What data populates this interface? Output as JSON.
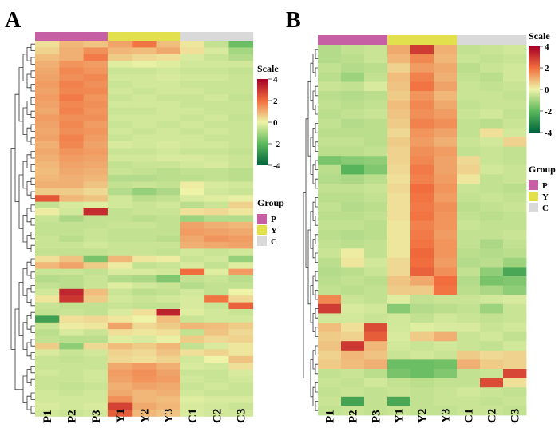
{
  "chart_data": [
    {
      "type": "heatmap",
      "panel_label": "A",
      "columns": [
        "P1",
        "P2",
        "P3",
        "Y1",
        "Y2",
        "Y3",
        "C1",
        "C2",
        "C3"
      ],
      "column_groups": [
        "P",
        "P",
        "P",
        "Y",
        "Y",
        "Y",
        "C",
        "C",
        "C"
      ],
      "row_count": 56,
      "values": [
        [
          0.3,
          0.9,
          0.7,
          1.2,
          1.9,
          0.8,
          0.2,
          -0.6,
          -1.8
        ],
        [
          0.5,
          1.0,
          1.5,
          0.9,
          0.8,
          1.1,
          0.3,
          -0.3,
          -1.0
        ],
        [
          0.8,
          1.0,
          1.8,
          0.6,
          0.4,
          0.3,
          -0.3,
          -0.5,
          -0.8
        ],
        [
          1.0,
          1.4,
          1.3,
          -0.2,
          -0.1,
          -0.2,
          -0.4,
          -0.4,
          -0.4
        ],
        [
          1.1,
          1.6,
          1.4,
          -0.5,
          -0.5,
          -0.4,
          -0.5,
          -0.5,
          -0.6
        ],
        [
          1.2,
          1.5,
          1.6,
          -0.4,
          -0.4,
          -0.3,
          -0.4,
          -0.4,
          -0.5
        ],
        [
          1.3,
          1.7,
          1.5,
          -0.5,
          -0.4,
          -0.4,
          -0.5,
          -0.5,
          -0.5
        ],
        [
          1.2,
          1.6,
          1.6,
          -0.4,
          -0.5,
          -0.4,
          -0.4,
          -0.5,
          -0.5
        ],
        [
          1.3,
          1.8,
          1.4,
          -0.5,
          -0.4,
          -0.5,
          -0.5,
          -0.4,
          -0.6
        ],
        [
          1.2,
          1.6,
          1.5,
          -0.4,
          -0.4,
          -0.4,
          -0.5,
          -0.5,
          -0.5
        ],
        [
          1.1,
          1.7,
          1.4,
          -0.5,
          -0.5,
          -0.4,
          -0.4,
          -0.5,
          -0.5
        ],
        [
          1.3,
          1.5,
          1.5,
          -0.4,
          -0.4,
          -0.4,
          -0.5,
          -0.4,
          -0.6
        ],
        [
          1.2,
          1.6,
          1.3,
          -0.5,
          -0.4,
          -0.5,
          -0.4,
          -0.5,
          -0.5
        ],
        [
          1.1,
          1.5,
          1.4,
          -0.4,
          -0.5,
          -0.4,
          -0.5,
          -0.4,
          -0.5
        ],
        [
          1.2,
          1.7,
          1.3,
          -0.5,
          -0.4,
          -0.4,
          -0.4,
          -0.5,
          -0.5
        ],
        [
          1.0,
          1.6,
          1.2,
          -0.3,
          -0.4,
          -0.3,
          -0.4,
          -0.4,
          -0.5
        ],
        [
          1.1,
          1.4,
          1.3,
          -0.5,
          -0.5,
          -0.4,
          -0.5,
          -0.5,
          -0.6
        ],
        [
          1.0,
          1.3,
          1.2,
          -0.4,
          -0.4,
          -0.3,
          -0.3,
          -0.4,
          -0.5
        ],
        [
          0.9,
          1.2,
          1.1,
          -0.6,
          -0.5,
          -0.5,
          -0.4,
          -0.3,
          -0.5
        ],
        [
          0.8,
          1.1,
          1.0,
          -0.5,
          -0.6,
          -0.7,
          -0.6,
          -0.6,
          -0.7
        ],
        [
          0.9,
          1.0,
          0.9,
          -0.8,
          -0.8,
          -0.7,
          -0.7,
          -0.6,
          -0.7
        ],
        [
          1.0,
          1.0,
          0.7,
          -0.6,
          -0.5,
          -0.6,
          0.1,
          -0.3,
          -0.4
        ],
        [
          0.6,
          0.6,
          0.4,
          -0.8,
          -1.2,
          -0.9,
          0.0,
          -0.4,
          -0.5
        ],
        [
          2.4,
          0.9,
          0.7,
          -0.4,
          -0.7,
          -0.6,
          -0.3,
          -0.2,
          -0.1
        ],
        [
          -0.6,
          -0.3,
          -0.2,
          -0.4,
          -0.5,
          -0.4,
          -0.7,
          -0.5,
          0.5
        ],
        [
          0.1,
          -0.4,
          3.2,
          -0.6,
          -0.5,
          -0.5,
          0.3,
          0.4,
          0.2
        ],
        [
          -0.5,
          -0.9,
          -0.6,
          -0.6,
          -0.7,
          -0.6,
          -1.1,
          -0.8,
          -0.8
        ],
        [
          -0.6,
          -0.6,
          -0.6,
          -0.5,
          -0.5,
          -0.6,
          1.2,
          1.0,
          0.9
        ],
        [
          -0.6,
          -0.6,
          -0.5,
          -0.6,
          -0.6,
          -0.6,
          1.3,
          1.2,
          1.1
        ],
        [
          -0.5,
          -0.7,
          -0.5,
          -0.6,
          -0.6,
          -0.7,
          1.1,
          1.4,
          1.3
        ],
        [
          -0.5,
          -0.5,
          -0.4,
          -0.5,
          -0.5,
          -0.5,
          1.0,
          1.1,
          1.2
        ],
        [
          -0.6,
          -0.6,
          -0.6,
          -0.5,
          -0.5,
          -0.6,
          -0.4,
          -0.5,
          -0.4
        ],
        [
          0.3,
          0.7,
          -1.6,
          0.9,
          0.2,
          0.1,
          -0.5,
          -0.4,
          -1.2
        ],
        [
          0.9,
          1.2,
          0.6,
          0.1,
          -0.6,
          -0.5,
          -0.3,
          -0.6,
          -0.2
        ],
        [
          -0.5,
          -0.5,
          -0.6,
          -0.3,
          -0.3,
          -0.4,
          2.0,
          -0.2,
          1.3
        ],
        [
          -0.8,
          -0.7,
          -0.5,
          -0.8,
          -0.9,
          -1.5,
          -0.6,
          -0.5,
          -0.7
        ],
        [
          -0.6,
          -0.7,
          -0.5,
          -0.2,
          -0.4,
          -0.5,
          -0.8,
          -0.6,
          -0.6
        ],
        [
          -0.4,
          3.3,
          0.8,
          -0.5,
          -0.7,
          -0.6,
          -0.4,
          -0.6,
          0.0
        ],
        [
          0.2,
          3.0,
          0.6,
          -0.4,
          -0.5,
          -0.4,
          -0.3,
          1.9,
          0.4
        ],
        [
          -0.5,
          -0.6,
          -0.6,
          -0.5,
          -0.6,
          -0.6,
          -0.3,
          -0.5,
          2.2
        ],
        [
          -0.6,
          -0.5,
          -0.6,
          -0.3,
          0.3,
          3.4,
          -0.2,
          -0.4,
          -0.5
        ],
        [
          -2.6,
          0.3,
          0.4,
          0.2,
          0.0,
          0.8,
          -0.5,
          -0.4,
          -0.4
        ],
        [
          -0.5,
          0.1,
          0.2,
          1.2,
          0.4,
          0.6,
          0.9,
          0.8,
          0.6
        ],
        [
          -0.7,
          -0.3,
          -0.5,
          0.3,
          0.2,
          0.3,
          -0.6,
          0.7,
          0.4
        ],
        [
          -0.6,
          -0.7,
          -0.7,
          -0.2,
          -0.3,
          -0.1,
          0.6,
          0.4,
          0.5
        ],
        [
          0.6,
          -1.3,
          0.4,
          0.8,
          0.6,
          0.9,
          -0.6,
          -0.3,
          0.2
        ],
        [
          -0.3,
          -0.5,
          -0.4,
          0.5,
          0.4,
          0.7,
          0.3,
          0.5,
          0.2
        ],
        [
          -0.5,
          -0.6,
          -0.5,
          0.4,
          0.3,
          0.5,
          -0.4,
          0.0,
          0.7
        ],
        [
          -0.5,
          -0.5,
          -0.5,
          1.1,
          1.3,
          1.0,
          -0.3,
          -0.4,
          0.3
        ],
        [
          -0.4,
          -0.5,
          -0.4,
          1.3,
          1.5,
          1.2,
          -0.5,
          -0.5,
          -0.3
        ],
        [
          -0.5,
          -0.5,
          -0.4,
          1.2,
          1.4,
          1.3,
          -0.4,
          -0.5,
          -0.4
        ],
        [
          -0.5,
          -0.6,
          -0.5,
          1.0,
          1.2,
          1.1,
          -0.5,
          -0.4,
          -0.5
        ],
        [
          -0.4,
          -0.5,
          -0.4,
          1.1,
          0.9,
          1.0,
          -0.4,
          -0.5,
          -0.5
        ],
        [
          -0.4,
          -0.4,
          -0.4,
          1.5,
          0.9,
          0.8,
          -0.2,
          -0.3,
          -0.3
        ],
        [
          -0.3,
          -0.4,
          -0.3,
          2.8,
          1.1,
          0.9,
          -0.3,
          -0.4,
          -0.5
        ],
        [
          -0.4,
          -0.5,
          -0.4,
          2.3,
          0.9,
          0.7,
          -0.3,
          -0.4,
          -0.4
        ]
      ]
    },
    {
      "type": "heatmap",
      "panel_label": "B",
      "columns": [
        "P1",
        "P2",
        "P3",
        "Y1",
        "Y2",
        "Y3",
        "C1",
        "C2",
        "C3"
      ],
      "column_groups": [
        "P",
        "P",
        "P",
        "Y",
        "Y",
        "Y",
        "C",
        "C",
        "C"
      ],
      "row_count": 40,
      "values": [
        [
          -0.8,
          -0.6,
          -0.5,
          1.1,
          2.9,
          1.0,
          -0.6,
          -0.5,
          -0.4
        ],
        [
          -0.8,
          -0.7,
          -0.5,
          0.9,
          1.6,
          0.9,
          -0.5,
          -0.6,
          -0.5
        ],
        [
          -0.6,
          -0.8,
          -0.7,
          0.5,
          1.3,
          1.1,
          -0.7,
          -0.5,
          -0.4
        ],
        [
          -0.7,
          -1.1,
          -0.6,
          0.8,
          1.7,
          1.0,
          -0.6,
          -0.7,
          -0.4
        ],
        [
          -0.5,
          -0.6,
          -0.3,
          0.7,
          1.9,
          1.2,
          -0.5,
          -0.6,
          -0.5
        ],
        [
          -0.7,
          -0.8,
          -0.7,
          0.6,
          1.4,
          0.9,
          -0.5,
          -0.5,
          -0.6
        ],
        [
          -0.6,
          -0.7,
          -0.6,
          0.8,
          1.6,
          1.1,
          -0.6,
          -0.5,
          -0.5
        ],
        [
          -0.7,
          -0.6,
          -0.5,
          0.7,
          1.5,
          1.3,
          -0.5,
          -0.4,
          -0.6
        ],
        [
          -0.6,
          -0.8,
          -0.7,
          0.6,
          1.7,
          1.5,
          -0.6,
          -0.7,
          -0.5
        ],
        [
          -0.7,
          -0.7,
          -0.7,
          0.4,
          1.4,
          1.2,
          -0.6,
          0.3,
          -0.4
        ],
        [
          -0.6,
          -0.6,
          -0.7,
          0.6,
          1.3,
          1.0,
          -0.5,
          -0.4,
          0.5
        ],
        [
          -0.7,
          -0.7,
          -0.6,
          0.5,
          1.5,
          1.3,
          -0.6,
          -0.5,
          -0.6
        ],
        [
          -1.6,
          -1.4,
          -1.3,
          0.5,
          1.6,
          1.2,
          0.4,
          -0.5,
          -0.6
        ],
        [
          -0.7,
          -2.1,
          -1.5,
          0.4,
          1.8,
          1.2,
          0.5,
          -0.4,
          -0.5
        ],
        [
          -0.8,
          -0.9,
          -0.7,
          0.3,
          1.7,
          1.3,
          0.2,
          -0.6,
          -0.5
        ],
        [
          -0.6,
          -0.6,
          -0.5,
          0.4,
          2.0,
          1.4,
          -0.5,
          -0.6,
          -0.7
        ],
        [
          -0.7,
          -0.7,
          -0.6,
          0.3,
          1.9,
          1.3,
          -0.6,
          -0.5,
          -0.6
        ],
        [
          -0.6,
          -0.8,
          -0.7,
          0.3,
          1.8,
          1.5,
          -0.7,
          -0.6,
          -0.5
        ],
        [
          -0.7,
          -0.7,
          -0.6,
          0.3,
          1.9,
          1.4,
          -0.6,
          -0.7,
          -0.6
        ],
        [
          -0.6,
          -0.6,
          -0.7,
          0.2,
          1.7,
          1.4,
          -0.5,
          -0.6,
          -0.6
        ],
        [
          -0.7,
          -0.8,
          -0.7,
          0.2,
          1.8,
          1.3,
          -0.6,
          -0.6,
          -0.5
        ],
        [
          -0.6,
          -0.7,
          -0.6,
          0.2,
          1.9,
          1.4,
          -0.6,
          -0.9,
          -0.6
        ],
        [
          -0.5,
          0.1,
          -0.6,
          0.2,
          2.1,
          1.4,
          -0.7,
          -0.8,
          -0.7
        ],
        [
          -0.7,
          0.2,
          -0.4,
          0.4,
          2.0,
          1.3,
          -0.8,
          -0.7,
          -1.1
        ],
        [
          -0.8,
          -0.7,
          -0.5,
          0.4,
          2.2,
          1.5,
          -0.6,
          -1.3,
          -2.4
        ],
        [
          -0.7,
          -0.6,
          -0.7,
          0.7,
          1.1,
          2.0,
          -0.8,
          -1.6,
          -1.5
        ],
        [
          -0.6,
          -0.7,
          -0.6,
          0.6,
          0.6,
          1.9,
          -0.7,
          -0.9,
          -1.3
        ],
        [
          1.6,
          -0.5,
          -0.6,
          -0.2,
          -0.6,
          -0.5,
          -0.5,
          -0.4,
          -0.3
        ],
        [
          2.9,
          -0.3,
          -0.4,
          -1.4,
          -0.8,
          -0.7,
          -0.6,
          -1.1,
          -0.5
        ],
        [
          -0.4,
          -0.4,
          -0.5,
          -0.4,
          -0.6,
          -0.4,
          -0.5,
          -0.6,
          -0.5
        ],
        [
          0.8,
          0.3,
          2.6,
          -0.4,
          -0.2,
          -0.3,
          -0.3,
          -0.5,
          -0.4
        ],
        [
          0.6,
          0.5,
          2.3,
          -0.3,
          0.6,
          1.0,
          -0.5,
          -0.4,
          -0.6
        ],
        [
          0.7,
          3.0,
          0.9,
          -0.4,
          -0.5,
          -0.4,
          -0.5,
          -0.6,
          -0.4
        ],
        [
          0.5,
          0.9,
          0.7,
          -0.5,
          -0.4,
          -0.5,
          0.6,
          0.4,
          0.5
        ],
        [
          0.6,
          0.8,
          1.0,
          -1.8,
          -1.8,
          -1.7,
          1.0,
          0.6,
          0.5
        ],
        [
          -0.6,
          -0.5,
          -0.7,
          -1.6,
          -1.8,
          -1.5,
          -0.6,
          -0.5,
          2.7
        ],
        [
          -0.5,
          -0.6,
          -0.4,
          -0.6,
          -0.7,
          -0.6,
          -0.6,
          2.6,
          0.3
        ],
        [
          -0.6,
          -0.5,
          -0.6,
          -0.5,
          -0.6,
          -0.5,
          -0.4,
          -0.5,
          -0.6
        ],
        [
          -0.5,
          -2.5,
          -0.6,
          -2.4,
          -0.6,
          -0.5,
          -0.5,
          -0.6,
          -0.5
        ],
        [
          -0.6,
          -0.5,
          -0.6,
          -0.5,
          -0.6,
          -0.6,
          -0.5,
          -0.5,
          -0.6
        ]
      ]
    }
  ],
  "group_colors": {
    "P": "#c65fa4",
    "Y": "#e3e04e",
    "C": "#d9d9d9"
  },
  "color_scale": {
    "stops": [
      {
        "value": -4,
        "color": "#00633c"
      },
      {
        "value": -2,
        "color": "#5cb85c"
      },
      {
        "value": 0,
        "color": "#eef3a8"
      },
      {
        "value": 2,
        "color": "#f26d3d"
      },
      {
        "value": 4,
        "color": "#a50026"
      }
    ]
  },
  "legend": {
    "scale_title": "Scale",
    "scale_ticks": [
      "4",
      "2",
      "0",
      "-2",
      "-4"
    ],
    "group_title": "Group",
    "group_items": [
      {
        "label": "P",
        "color": "#c65fa4"
      },
      {
        "label": "Y",
        "color": "#e3e04e"
      },
      {
        "label": "C",
        "color": "#d9d9d9"
      }
    ]
  }
}
